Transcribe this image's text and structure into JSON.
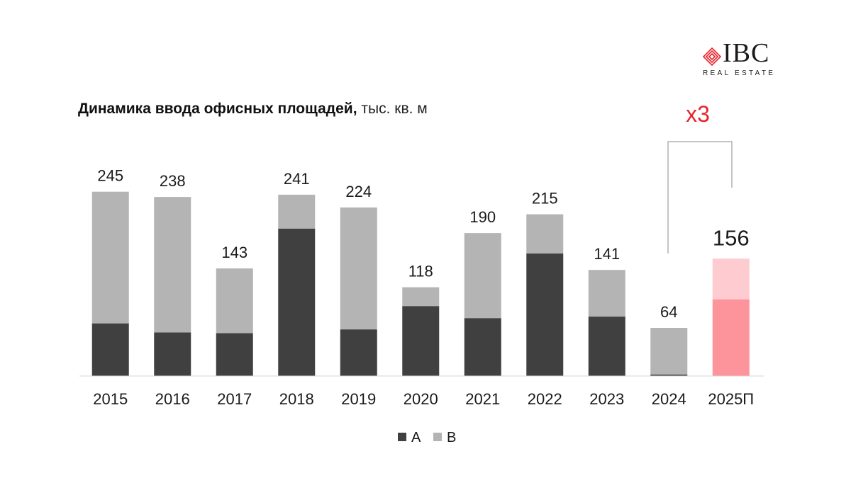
{
  "logo": {
    "text": "IBC",
    "subtitle": "REAL ESTATE"
  },
  "title": {
    "main": "Динамика ввода офисных площадей,",
    "unit": "тыс. кв. м"
  },
  "annotation": {
    "label": "x3"
  },
  "colors": {
    "class_a": "#404040",
    "class_b": "#b4b4b5",
    "forecast_a": "#fd949b",
    "forecast_b": "#fecbd0",
    "accent": "#e8222b"
  },
  "chart_data": {
    "type": "bar",
    "stacked": true,
    "categories": [
      "2015",
      "2016",
      "2017",
      "2018",
      "2019",
      "2020",
      "2021",
      "2022",
      "2023",
      "2024",
      "2025П"
    ],
    "series": [
      {
        "name": "A",
        "values": [
          70,
          58,
          57,
          196,
          62,
          93,
          77,
          163,
          79,
          2,
          102
        ]
      },
      {
        "name": "B",
        "values": [
          175,
          180,
          86,
          45,
          162,
          25,
          113,
          52,
          62,
          62,
          54
        ]
      }
    ],
    "totals": [
      245,
      238,
      143,
      241,
      224,
      118,
      190,
      215,
      141,
      64,
      156
    ],
    "forecast_index": 10,
    "ylim": [
      0,
      260
    ],
    "legend_position": "bottom-center",
    "grid": false
  }
}
